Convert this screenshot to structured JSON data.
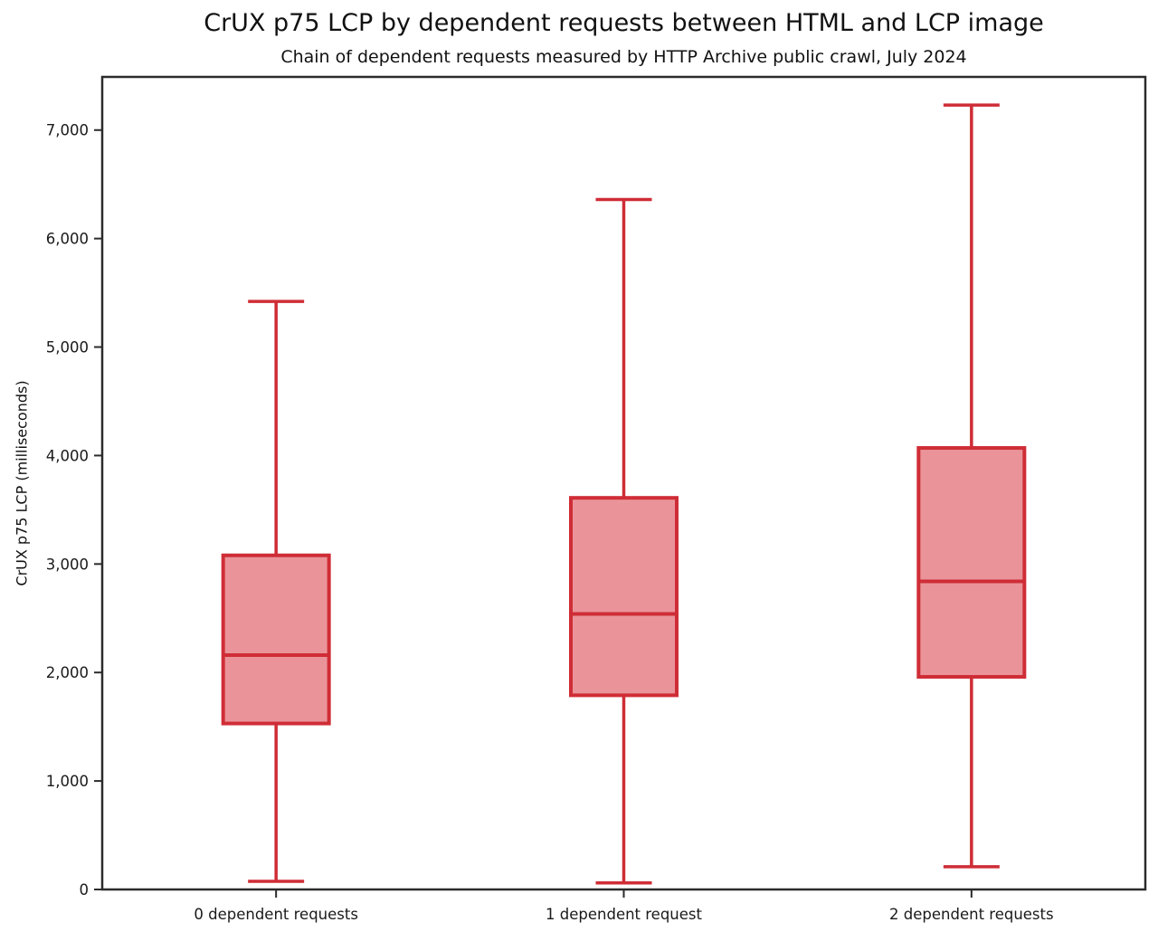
{
  "chart_data": {
    "type": "boxplot",
    "title": "CrUX p75 LCP by dependent requests between HTML and LCP image",
    "subtitle": "Chain of dependent requests measured by HTTP Archive public crawl, July 2024",
    "ylabel": "CrUX p75 LCP (milliseconds)",
    "xlabel": "",
    "categories": [
      "0 dependent requests",
      "1 dependent request",
      "2 dependent requests"
    ],
    "series": [
      {
        "category": "0 dependent requests",
        "whisker_low": 75,
        "q1": 1530,
        "median": 2160,
        "q3": 3080,
        "whisker_high": 5420
      },
      {
        "category": "1 dependent request",
        "whisker_low": 60,
        "q1": 1790,
        "median": 2540,
        "q3": 3610,
        "whisker_high": 6360
      },
      {
        "category": "2 dependent requests",
        "whisker_low": 210,
        "q1": 1960,
        "median": 2840,
        "q3": 4070,
        "whisker_high": 7230
      }
    ],
    "ylim": [
      0,
      7490
    ],
    "yticks": [
      0,
      1000,
      2000,
      3000,
      4000,
      5000,
      6000,
      7000
    ],
    "ytick_labels": [
      "0",
      "1,000",
      "2,000",
      "3,000",
      "4,000",
      "5,000",
      "6,000",
      "7,000"
    ],
    "grid": false,
    "legend": null,
    "colors": {
      "box_edge": "#cf2d36",
      "box_fill": "#ea949a",
      "spine": "#2b2b2b",
      "text": "#1a1a1a"
    }
  }
}
